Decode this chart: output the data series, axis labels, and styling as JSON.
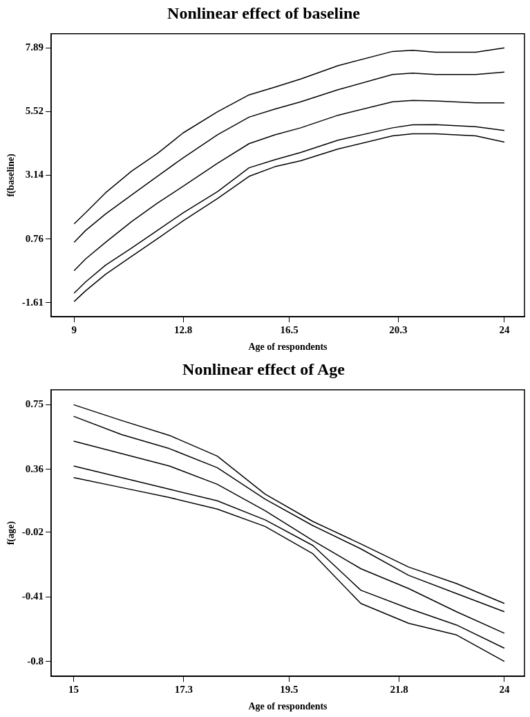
{
  "chart_data": [
    {
      "type": "line",
      "title": "Nonlinear effect of baseline",
      "xlabel": "Age of respondents",
      "ylabel": "f(baseline)",
      "x": [
        9,
        9.4,
        10.1,
        11,
        11.9,
        12.8,
        14,
        15.1,
        16,
        16.9,
        18.2,
        20.1,
        20.8,
        21.6,
        23,
        24
      ],
      "series": [
        {
          "color": "#000000",
          "values": [
            1.33,
            1.74,
            2.49,
            3.29,
            3.95,
            4.72,
            5.51,
            6.14,
            6.43,
            6.73,
            7.23,
            7.76,
            7.8,
            7.73,
            7.73,
            7.89
          ]
        },
        {
          "color": "#000000",
          "values": [
            0.64,
            1.08,
            1.7,
            2.4,
            3.1,
            3.79,
            4.65,
            5.31,
            5.61,
            5.88,
            6.33,
            6.9,
            6.95,
            6.9,
            6.9,
            6.99
          ]
        },
        {
          "color": "#000000",
          "values": [
            -0.42,
            0.02,
            0.64,
            1.41,
            2.1,
            2.73,
            3.59,
            4.32,
            4.65,
            4.91,
            5.38,
            5.88,
            5.93,
            5.91,
            5.84,
            5.84
          ]
        },
        {
          "color": "#000000",
          "values": [
            -1.26,
            -0.84,
            -0.21,
            0.42,
            1.08,
            1.74,
            2.53,
            3.42,
            3.72,
            3.99,
            4.45,
            4.91,
            5.02,
            5.03,
            4.95,
            4.81
          ]
        },
        {
          "color": "#000000",
          "values": [
            -1.57,
            -1.17,
            -0.55,
            0.11,
            0.77,
            1.44,
            2.27,
            3.1,
            3.46,
            3.68,
            4.12,
            4.61,
            4.69,
            4.69,
            4.61,
            4.38
          ]
        }
      ],
      "xlim": [
        8.2,
        24.7
      ],
      "xticks": [
        9,
        12.8,
        16.5,
        20.3,
        24
      ],
      "ylim": [
        -2.14,
        8.42
      ],
      "yticks": [
        -1.61,
        0.76,
        3.14,
        5.52,
        7.89
      ],
      "grid": false,
      "legend": false,
      "marker": "none",
      "line_style": "solid"
    },
    {
      "type": "line",
      "title": "Nonlinear effect of Age",
      "xlabel": "Age of respondents",
      "ylabel": "f(age)",
      "x": [
        15,
        16,
        17,
        18,
        19,
        20,
        21,
        22,
        23,
        24
      ],
      "series": [
        {
          "color": "#000000",
          "values": [
            0.75,
            0.655,
            0.565,
            0.44,
            0.21,
            0.045,
            -0.09,
            -0.23,
            -0.33,
            -0.45
          ]
        },
        {
          "color": "#000000",
          "values": [
            0.68,
            0.57,
            0.485,
            0.37,
            0.18,
            0.02,
            -0.12,
            -0.28,
            -0.39,
            -0.5
          ]
        },
        {
          "color": "#000000",
          "values": [
            0.53,
            0.455,
            0.38,
            0.27,
            0.11,
            -0.07,
            -0.24,
            -0.36,
            -0.5,
            -0.63
          ]
        },
        {
          "color": "#000000",
          "values": [
            0.38,
            0.31,
            0.24,
            0.17,
            0.055,
            -0.1,
            -0.37,
            -0.48,
            -0.58,
            -0.72
          ]
        },
        {
          "color": "#000000",
          "values": [
            0.31,
            0.25,
            0.19,
            0.12,
            0.015,
            -0.15,
            -0.45,
            -0.57,
            -0.64,
            -0.8
          ]
        }
      ],
      "xlim": [
        14.53,
        24.42
      ],
      "xticks": [
        15,
        17.3,
        19.5,
        21.8,
        24
      ],
      "ylim": [
        -0.89,
        0.84
      ],
      "yticks": [
        -0.8,
        -0.41,
        -0.02,
        0.36,
        0.75
      ],
      "grid": false,
      "legend": false,
      "marker": "none",
      "line_style": "solid"
    }
  ]
}
